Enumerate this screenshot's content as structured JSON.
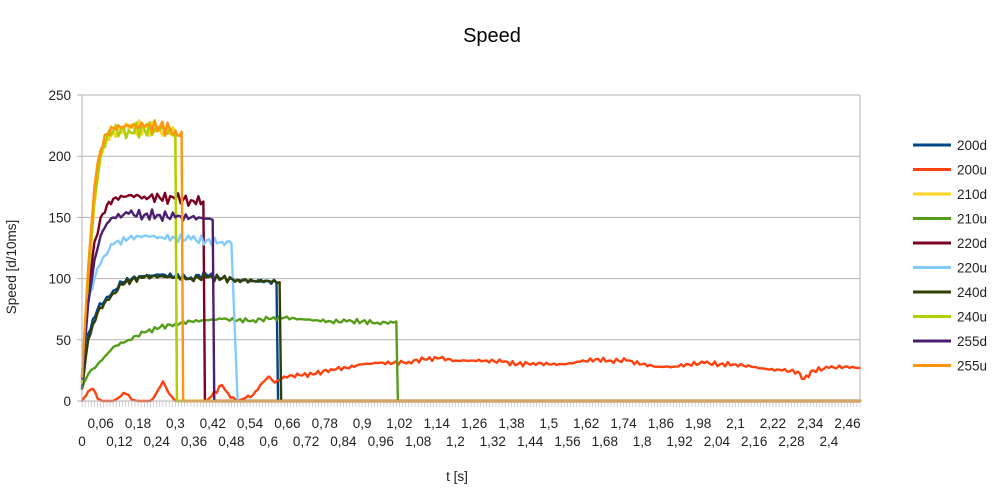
{
  "chart_data": {
    "type": "line",
    "title": "Speed",
    "xlabel": "t [s]",
    "ylabel": "Speed [d/10ms]",
    "xlim": [
      0,
      2.5
    ],
    "ylim": [
      0,
      250
    ],
    "yticks": [
      0,
      50,
      100,
      150,
      200,
      250
    ],
    "xtick_labels_upper": [
      "0,06",
      "0,18",
      "0,3",
      "0,42",
      "0,54",
      "0,66",
      "0,78",
      "0,9",
      "1,02",
      "1,14",
      "1,26",
      "1,38",
      "1,5",
      "1,62",
      "1,74",
      "1,86",
      "1,98",
      "2,1",
      "2,22",
      "2,34",
      "2,46"
    ],
    "xtick_labels_lower": [
      "0",
      "0,12",
      "0,24",
      "0,36",
      "0,48",
      "0,6",
      "0,72",
      "0,84",
      "0,96",
      "1,08",
      "1,2",
      "1,32",
      "1,44",
      "1,56",
      "1,68",
      "1,8",
      "1,92",
      "2,04",
      "2,16",
      "2,28",
      "2,4"
    ],
    "grid": "horizontal",
    "legend_position": "right",
    "series": [
      {
        "name": "200d",
        "color": "#004586",
        "points": [
          [
            0,
            12
          ],
          [
            0.02,
            55
          ],
          [
            0.05,
            75
          ],
          [
            0.08,
            85
          ],
          [
            0.1,
            90
          ],
          [
            0.13,
            97
          ],
          [
            0.16,
            100
          ],
          [
            0.2,
            102
          ],
          [
            0.25,
            103
          ],
          [
            0.3,
            102
          ],
          [
            0.35,
            101
          ],
          [
            0.4,
            103
          ],
          [
            0.45,
            100
          ],
          [
            0.5,
            99
          ],
          [
            0.55,
            98
          ],
          [
            0.6,
            98
          ],
          [
            0.625,
            97
          ],
          [
            0.63,
            0
          ],
          [
            2.5,
            0
          ]
        ]
      },
      {
        "name": "200u",
        "color": "#ff420e",
        "points": [
          [
            0,
            0
          ],
          [
            0.02,
            8
          ],
          [
            0.035,
            10
          ],
          [
            0.05,
            2
          ],
          [
            0.065,
            0
          ],
          [
            0.1,
            0
          ],
          [
            0.12,
            3
          ],
          [
            0.14,
            6
          ],
          [
            0.16,
            1
          ],
          [
            0.18,
            0
          ],
          [
            0.22,
            0
          ],
          [
            0.24,
            7
          ],
          [
            0.26,
            16
          ],
          [
            0.28,
            6
          ],
          [
            0.3,
            0
          ],
          [
            0.35,
            0
          ],
          [
            0.4,
            0
          ],
          [
            0.45,
            13
          ],
          [
            0.47,
            6
          ],
          [
            0.5,
            0
          ],
          [
            0.55,
            5
          ],
          [
            0.58,
            15
          ],
          [
            0.6,
            20
          ],
          [
            0.62,
            15
          ],
          [
            0.65,
            20
          ],
          [
            0.7,
            21
          ],
          [
            0.75,
            22
          ],
          [
            0.8,
            26
          ],
          [
            0.85,
            27
          ],
          [
            0.9,
            30
          ],
          [
            0.95,
            31
          ],
          [
            1.0,
            31
          ],
          [
            1.05,
            32
          ],
          [
            1.1,
            34
          ],
          [
            1.15,
            35
          ],
          [
            1.2,
            33
          ],
          [
            1.25,
            33
          ],
          [
            1.3,
            33
          ],
          [
            1.35,
            32
          ],
          [
            1.4,
            30
          ],
          [
            1.45,
            31
          ],
          [
            1.5,
            30
          ],
          [
            1.55,
            30
          ],
          [
            1.6,
            32
          ],
          [
            1.65,
            34
          ],
          [
            1.7,
            33
          ],
          [
            1.75,
            33
          ],
          [
            1.8,
            30
          ],
          [
            1.85,
            28
          ],
          [
            1.9,
            28
          ],
          [
            1.95,
            30
          ],
          [
            2.0,
            31
          ],
          [
            2.05,
            30
          ],
          [
            2.1,
            30
          ],
          [
            2.15,
            28
          ],
          [
            2.2,
            26
          ],
          [
            2.25,
            25
          ],
          [
            2.3,
            24
          ],
          [
            2.32,
            18
          ],
          [
            2.35,
            25
          ],
          [
            2.4,
            27
          ],
          [
            2.45,
            28
          ],
          [
            2.5,
            27
          ]
        ]
      },
      {
        "name": "210d",
        "color": "#ffd320",
        "points": [
          [
            0,
            15
          ],
          [
            0.02,
            100
          ],
          [
            0.04,
            160
          ],
          [
            0.06,
            200
          ],
          [
            0.08,
            215
          ],
          [
            0.1,
            220
          ],
          [
            0.15,
            222
          ],
          [
            0.2,
            223
          ],
          [
            0.25,
            222
          ],
          [
            0.3,
            220
          ],
          [
            0.305,
            0
          ],
          [
            2.5,
            0
          ]
        ]
      },
      {
        "name": "210u",
        "color": "#579d1c",
        "points": [
          [
            0,
            10
          ],
          [
            0.02,
            22
          ],
          [
            0.05,
            30
          ],
          [
            0.08,
            38
          ],
          [
            0.1,
            44
          ],
          [
            0.15,
            50
          ],
          [
            0.2,
            56
          ],
          [
            0.25,
            60
          ],
          [
            0.3,
            63
          ],
          [
            0.35,
            65
          ],
          [
            0.4,
            66
          ],
          [
            0.45,
            67
          ],
          [
            0.5,
            66
          ],
          [
            0.55,
            66
          ],
          [
            0.6,
            67
          ],
          [
            0.65,
            68
          ],
          [
            0.7,
            67
          ],
          [
            0.75,
            66
          ],
          [
            0.8,
            65
          ],
          [
            0.85,
            65
          ],
          [
            0.9,
            65
          ],
          [
            0.95,
            64
          ],
          [
            1.0,
            64
          ],
          [
            1.01,
            65
          ],
          [
            1.015,
            0
          ],
          [
            2.5,
            0
          ]
        ]
      },
      {
        "name": "220d",
        "color": "#7e0021",
        "points": [
          [
            0,
            20
          ],
          [
            0.02,
            90
          ],
          [
            0.04,
            130
          ],
          [
            0.06,
            150
          ],
          [
            0.08,
            160
          ],
          [
            0.1,
            165
          ],
          [
            0.15,
            168
          ],
          [
            0.2,
            167
          ],
          [
            0.25,
            166
          ],
          [
            0.3,
            165
          ],
          [
            0.35,
            164
          ],
          [
            0.39,
            163
          ],
          [
            0.395,
            0
          ],
          [
            2.5,
            0
          ]
        ]
      },
      {
        "name": "220u",
        "color": "#83caff",
        "points": [
          [
            0,
            15
          ],
          [
            0.02,
            80
          ],
          [
            0.04,
            100
          ],
          [
            0.06,
            112
          ],
          [
            0.08,
            120
          ],
          [
            0.1,
            128
          ],
          [
            0.15,
            133
          ],
          [
            0.2,
            135
          ],
          [
            0.25,
            134
          ],
          [
            0.3,
            133
          ],
          [
            0.35,
            132
          ],
          [
            0.4,
            131
          ],
          [
            0.45,
            130
          ],
          [
            0.48,
            129
          ],
          [
            0.5,
            0
          ],
          [
            2.5,
            0
          ]
        ]
      },
      {
        "name": "240d",
        "color": "#314004",
        "points": [
          [
            0,
            10
          ],
          [
            0.02,
            50
          ],
          [
            0.05,
            72
          ],
          [
            0.08,
            83
          ],
          [
            0.1,
            88
          ],
          [
            0.13,
            95
          ],
          [
            0.16,
            99
          ],
          [
            0.2,
            101
          ],
          [
            0.25,
            102
          ],
          [
            0.3,
            101
          ],
          [
            0.35,
            100
          ],
          [
            0.4,
            101
          ],
          [
            0.45,
            100
          ],
          [
            0.5,
            99
          ],
          [
            0.55,
            98
          ],
          [
            0.6,
            98
          ],
          [
            0.635,
            97
          ],
          [
            0.64,
            0
          ],
          [
            2.5,
            0
          ]
        ]
      },
      {
        "name": "240u",
        "color": "#aecf00",
        "points": [
          [
            0,
            15
          ],
          [
            0.02,
            100
          ],
          [
            0.04,
            165
          ],
          [
            0.06,
            200
          ],
          [
            0.08,
            215
          ],
          [
            0.1,
            220
          ],
          [
            0.15,
            221
          ],
          [
            0.2,
            222
          ],
          [
            0.25,
            221
          ],
          [
            0.3,
            219
          ],
          [
            0.305,
            0
          ],
          [
            2.5,
            0
          ]
        ]
      },
      {
        "name": "255d",
        "color": "#4b1f6f",
        "points": [
          [
            0,
            18
          ],
          [
            0.02,
            80
          ],
          [
            0.04,
            115
          ],
          [
            0.06,
            135
          ],
          [
            0.08,
            145
          ],
          [
            0.1,
            150
          ],
          [
            0.15,
            153
          ],
          [
            0.2,
            152
          ],
          [
            0.25,
            152
          ],
          [
            0.3,
            150
          ],
          [
            0.35,
            150
          ],
          [
            0.4,
            149
          ],
          [
            0.42,
            148
          ],
          [
            0.425,
            0
          ],
          [
            2.5,
            0
          ]
        ]
      },
      {
        "name": "255u",
        "color": "#ff950e",
        "points": [
          [
            0,
            20
          ],
          [
            0.02,
            110
          ],
          [
            0.04,
            175
          ],
          [
            0.06,
            205
          ],
          [
            0.08,
            218
          ],
          [
            0.1,
            223
          ],
          [
            0.15,
            225
          ],
          [
            0.2,
            224
          ],
          [
            0.25,
            224
          ],
          [
            0.3,
            221
          ],
          [
            0.32,
            220
          ],
          [
            0.325,
            0
          ],
          [
            2.5,
            0
          ]
        ]
      }
    ]
  }
}
